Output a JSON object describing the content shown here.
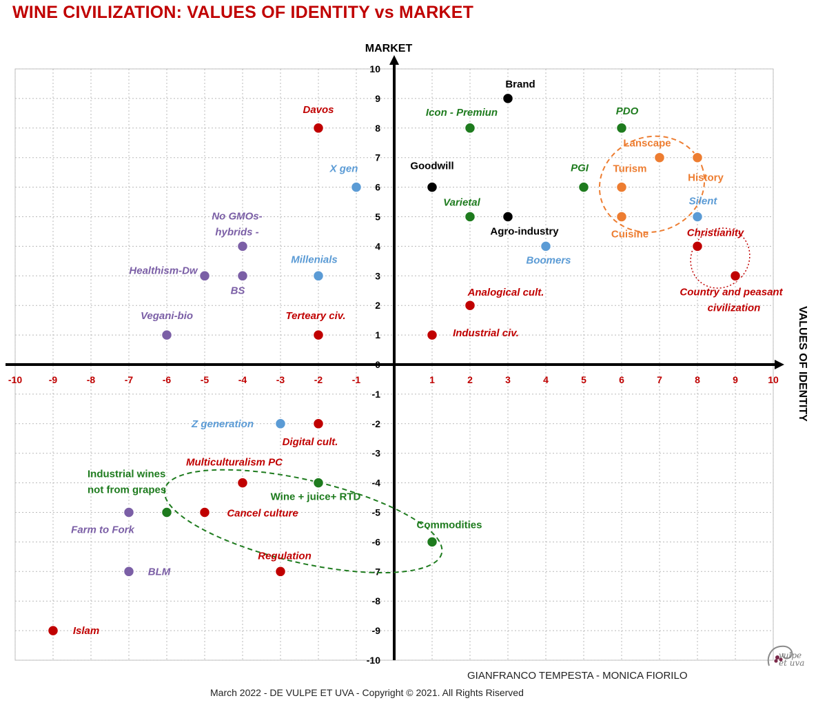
{
  "title": "WINE CIVILIZATION: VALUES OF IDENTITY vs MARKET",
  "footer": {
    "authors": "GIANFRANCO TEMPESTA - MONICA FIORILO",
    "copyright": "March 2022 - DE VULPE ET UVA -  Copyright © 2021. All Rights Riserved"
  },
  "logo": {
    "line1": "vulpe",
    "line2": "et uva"
  },
  "colors": {
    "red": "#c00000",
    "green": "#1e7b1e",
    "black": "#000000",
    "blue": "#5b9bd5",
    "purple": "#7b5fa6",
    "orange": "#ed7d31"
  },
  "chart_data": {
    "type": "scatter",
    "xlabel": "VALUES OF IDENTITY",
    "ylabel": "MARKET",
    "xlim": [
      -10,
      10
    ],
    "ylim": [
      -10,
      10
    ],
    "grid": true,
    "x_ticks": [
      "-10",
      "-9",
      "-8",
      "-7",
      "-6",
      "-5",
      "-4",
      "-3",
      "-2",
      "-1",
      "0",
      "1",
      "2",
      "3",
      "4",
      "5",
      "6",
      "7",
      "8",
      "9",
      "10"
    ],
    "y_ticks": [
      "10",
      "9",
      "8",
      "7",
      "6",
      "5",
      "4",
      "3",
      "2",
      "1",
      "0",
      "-1",
      "-2",
      "-3",
      "-4",
      "-5",
      "-6",
      "-7",
      "-8",
      "-9",
      "-10"
    ],
    "points": [
      {
        "label": "Brand",
        "x": 3,
        "y": 9,
        "color": "black"
      },
      {
        "label": "Goodwill",
        "x": 1,
        "y": 6,
        "color": "black"
      },
      {
        "label": "Agro-industry",
        "x": 3,
        "y": 5,
        "color": "black"
      },
      {
        "label": "Icon - Premiun",
        "x": 2,
        "y": 8,
        "color": "green"
      },
      {
        "label": "PDO",
        "x": 6,
        "y": 8,
        "color": "green"
      },
      {
        "label": "PGI",
        "x": 5,
        "y": 6,
        "color": "green"
      },
      {
        "label": "Varietal",
        "x": 2,
        "y": 5,
        "color": "green"
      },
      {
        "label": "Lanscape",
        "x": 7,
        "y": 7,
        "color": "orange"
      },
      {
        "label": "History",
        "x": 8,
        "y": 7,
        "color": "orange"
      },
      {
        "label": "Turism",
        "x": 6,
        "y": 6,
        "color": "orange"
      },
      {
        "label": "Cuisine",
        "x": 6,
        "y": 5,
        "color": "orange"
      },
      {
        "label": "Silent",
        "x": 8,
        "y": 5,
        "color": "blue"
      },
      {
        "label": "Boomers",
        "x": 4,
        "y": 4,
        "color": "blue"
      },
      {
        "label": "X gen",
        "x": -1,
        "y": 6,
        "color": "blue"
      },
      {
        "label": "Millenials",
        "x": -2,
        "y": 3,
        "color": "blue"
      },
      {
        "label": "Z generation",
        "x": -3,
        "y": -2,
        "color": "blue"
      },
      {
        "label": "Christianity",
        "x": 8,
        "y": 4,
        "color": "red"
      },
      {
        "label": "Country and peasant civilization",
        "x": 9,
        "y": 3,
        "color": "red"
      },
      {
        "label": "Analogical cult.",
        "x": 2,
        "y": 2,
        "color": "red"
      },
      {
        "label": "Industrial civ.",
        "x": 1,
        "y": 1,
        "color": "red"
      },
      {
        "label": "Davos",
        "x": -2,
        "y": 8,
        "color": "red"
      },
      {
        "label": "Terteary civ.",
        "x": -2,
        "y": 1,
        "color": "red"
      },
      {
        "label": "Digital cult.",
        "x": -2,
        "y": -2,
        "color": "red"
      },
      {
        "label": "Multiculturalism PC",
        "x": -4,
        "y": -4,
        "color": "red"
      },
      {
        "label": "Cancel culture",
        "x": -5,
        "y": -5,
        "color": "red"
      },
      {
        "label": "Regulation",
        "x": -3,
        "y": -7,
        "color": "red"
      },
      {
        "label": "Islam",
        "x": -9,
        "y": -9,
        "color": "red"
      },
      {
        "label": "No GMOs-hybrids -",
        "x": -4,
        "y": 4,
        "color": "purple"
      },
      {
        "label": "Healthism-Dw",
        "x": -5,
        "y": 3,
        "color": "purple"
      },
      {
        "label": "BS",
        "x": -4,
        "y": 3,
        "color": "purple"
      },
      {
        "label": "Vegani-bio",
        "x": -6,
        "y": 1,
        "color": "purple"
      },
      {
        "label": "Farm to Fork",
        "x": -7,
        "y": -5,
        "color": "purple"
      },
      {
        "label": "BLM",
        "x": -7,
        "y": -7,
        "color": "purple"
      },
      {
        "label": "Industrial wines not from grapes",
        "x": -6,
        "y": -5,
        "color": "green"
      },
      {
        "label": "Wine + juice+ RTD",
        "x": -2,
        "y": -4,
        "color": "green"
      },
      {
        "label": "Commodities",
        "x": 1,
        "y": -6,
        "color": "green"
      }
    ],
    "groups": [
      {
        "name": "identity-cluster",
        "color": "orange",
        "center": [
          6.8,
          6.1
        ],
        "radius": [
          1.4,
          1.6
        ],
        "rotation": -20
      },
      {
        "name": "peasant-cluster",
        "color": "red",
        "center": [
          8.6,
          3.6
        ],
        "radius": [
          0.75,
          1.05
        ],
        "rotation": 40
      },
      {
        "name": "market-cluster",
        "color": "green",
        "center": [
          -2.4,
          -5.3
        ],
        "radius": [
          3.75,
          1.4
        ],
        "rotation": 13
      }
    ]
  }
}
